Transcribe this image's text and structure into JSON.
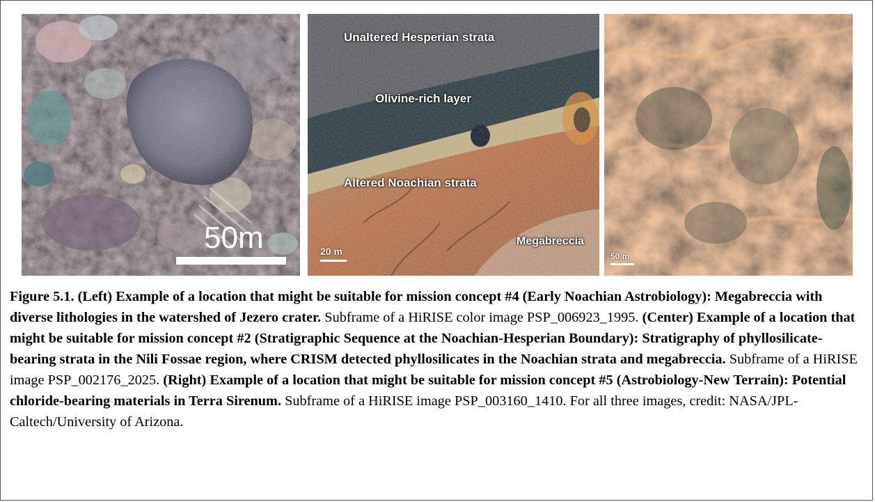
{
  "panels": {
    "left": {
      "scale_label": "50m"
    },
    "center": {
      "label_top": "Unaltered Hesperian strata",
      "label_olivine": "Olivine-rich layer",
      "label_altered": "Altered Noachian strata",
      "label_megabreccia": "Megabreccia",
      "scale_label": "20 m"
    },
    "right": {
      "scale_label": "50 m"
    }
  },
  "caption": {
    "left_title": "Figure 5.1. (Left) Example of a location that might be suitable for mission concept #4 (Early Noachian Astrobiology): Megabreccia with diverse lithologies in the watershed of Jezero crater.",
    "left_text": " Subframe of a HiRISE color image PSP_006923_1995. ",
    "center_title": "(Center) Example of a location that might be suitable for mission concept #2 (Stratigraphic Sequence at the Noachian-Hesperian Boundary): Stratigraphy of phyllosilicate-bearing strata in the Nili Fossae region, where CRISM detected phyllosilicates in the Noachian strata and megabreccia.",
    "center_text": " Subframe of a HiRISE image PSP_002176_2025. ",
    "right_title": "(Right) Example of a location that might be suitable for mission concept #5 (Astrobiology-New Terrain): Potential chloride-bearing materials in Terra Sirenum.",
    "right_text": " Subframe of a HiRISE image PSP_003160_1410.  For all three images, credit: NASA/JPL-Caltech/University of Arizona."
  }
}
